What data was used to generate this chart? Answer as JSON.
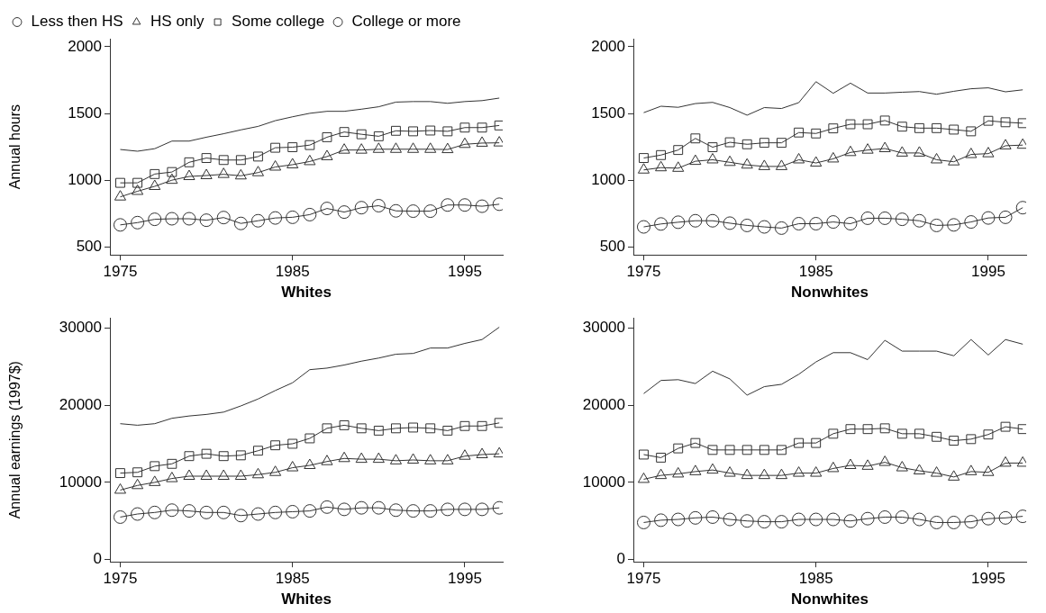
{
  "chart_data": [
    {
      "type": "line",
      "xlabel": "Whites",
      "ylabel": "Annual hours",
      "x": [
        1975,
        1976,
        1977,
        1978,
        1979,
        1980,
        1981,
        1982,
        1983,
        1984,
        1985,
        1986,
        1987,
        1988,
        1989,
        1990,
        1991,
        1992,
        1993,
        1994,
        1995,
        1996,
        1997
      ],
      "xlim": [
        1974.4,
        1997.2
      ],
      "xticks": [
        1975,
        1985,
        1995
      ],
      "ylim": [
        440,
        2060
      ],
      "yticks": [
        500,
        1000,
        1500,
        2000
      ],
      "grid": false,
      "legend": "top",
      "series": [
        {
          "name": "Less then HS",
          "color": "#333333",
          "marker": "circle",
          "values": [
            665,
            682,
            707,
            711,
            711,
            700,
            720,
            676,
            696,
            717,
            722,
            742,
            788,
            761,
            794,
            809,
            770,
            768,
            768,
            814,
            814,
            805,
            820
          ]
        },
        {
          "name": "HS only",
          "color": "#333333",
          "marker": "triangle",
          "values": [
            875,
            917,
            954,
            1000,
            1028,
            1035,
            1044,
            1033,
            1057,
            1099,
            1116,
            1140,
            1177,
            1226,
            1226,
            1232,
            1232,
            1232,
            1232,
            1230,
            1269,
            1278,
            1280
          ]
        },
        {
          "name": "Some college",
          "color": "#333333",
          "marker": "square",
          "values": [
            980,
            980,
            1046,
            1061,
            1134,
            1166,
            1151,
            1151,
            1177,
            1243,
            1247,
            1263,
            1322,
            1361,
            1344,
            1329,
            1370,
            1366,
            1372,
            1366,
            1394,
            1394,
            1410
          ]
        },
        {
          "name": "College or more",
          "color": "#333333",
          "marker": "none",
          "values": [
            1230,
            1217,
            1236,
            1293,
            1293,
            1322,
            1348,
            1377,
            1403,
            1446,
            1475,
            1501,
            1516,
            1516,
            1532,
            1550,
            1585,
            1589,
            1589,
            1576,
            1589,
            1596,
            1615
          ]
        }
      ]
    },
    {
      "type": "line",
      "xlabel": "Nonwhites",
      "x": [
        1975,
        1976,
        1977,
        1978,
        1979,
        1980,
        1981,
        1982,
        1983,
        1984,
        1985,
        1986,
        1987,
        1988,
        1989,
        1990,
        1991,
        1992,
        1993,
        1994,
        1995,
        1996,
        1997
      ],
      "xlim": [
        1974.4,
        1997.2
      ],
      "xticks": [
        1975,
        1985,
        1995
      ],
      "ylim": [
        440,
        2060
      ],
      "yticks": [
        500,
        1000,
        1500,
        2000
      ],
      "grid": false,
      "series": [
        {
          "color": "#333333",
          "marker": "circle",
          "values": [
            650,
            672,
            685,
            696,
            696,
            678,
            661,
            650,
            641,
            674,
            674,
            687,
            674,
            715,
            715,
            707,
            696,
            661,
            665,
            687,
            717,
            722,
            794
          ]
        },
        {
          "color": "#333333",
          "marker": "triangle",
          "values": [
            1077,
            1094,
            1090,
            1142,
            1153,
            1134,
            1114,
            1103,
            1103,
            1153,
            1129,
            1160,
            1208,
            1226,
            1237,
            1204,
            1204,
            1153,
            1138,
            1193,
            1199,
            1258,
            1263
          ]
        },
        {
          "color": "#333333",
          "marker": "square",
          "values": [
            1166,
            1188,
            1226,
            1313,
            1247,
            1284,
            1269,
            1280,
            1280,
            1357,
            1350,
            1388,
            1419,
            1419,
            1447,
            1401,
            1390,
            1390,
            1379,
            1366,
            1445,
            1434,
            1427
          ]
        },
        {
          "color": "#333333",
          "marker": "none",
          "values": [
            1506,
            1554,
            1546,
            1574,
            1583,
            1544,
            1487,
            1544,
            1537,
            1581,
            1738,
            1651,
            1727,
            1653,
            1653,
            1659,
            1664,
            1644,
            1666,
            1685,
            1692,
            1662,
            1677
          ]
        }
      ]
    },
    {
      "type": "line",
      "xlabel": "Whites",
      "ylabel": "Annual earnings (1997$)",
      "x": [
        1975,
        1976,
        1977,
        1978,
        1979,
        1980,
        1981,
        1982,
        1983,
        1984,
        1985,
        1986,
        1987,
        1988,
        1989,
        1990,
        1991,
        1992,
        1993,
        1994,
        1995,
        1996,
        1997
      ],
      "xlim": [
        1974.4,
        1997.2
      ],
      "xticks": [
        1975,
        1985,
        1995
      ],
      "ylim": [
        -300,
        31300
      ],
      "yticks": [
        0,
        10000,
        20000,
        30000
      ],
      "grid": false,
      "series": [
        {
          "color": "#333333",
          "marker": "circle",
          "values": [
            5500,
            5900,
            6100,
            6400,
            6300,
            6100,
            6100,
            5700,
            5900,
            6100,
            6200,
            6300,
            6800,
            6500,
            6700,
            6700,
            6400,
            6300,
            6300,
            6500,
            6500,
            6500,
            6700
          ]
        },
        {
          "color": "#333333",
          "marker": "triangle",
          "values": [
            9000,
            9600,
            10000,
            10500,
            10800,
            10800,
            10800,
            10800,
            11000,
            11300,
            11900,
            12200,
            12700,
            13100,
            13000,
            13000,
            12800,
            12900,
            12800,
            12800,
            13400,
            13600,
            13700
          ]
        },
        {
          "color": "#333333",
          "marker": "square",
          "values": [
            11200,
            11300,
            12100,
            12400,
            13400,
            13700,
            13400,
            13500,
            14100,
            14800,
            15000,
            15700,
            17000,
            17400,
            17000,
            16700,
            17000,
            17100,
            17000,
            16700,
            17300,
            17300,
            17700
          ]
        },
        {
          "color": "#333333",
          "marker": "none",
          "values": [
            17600,
            17400,
            17600,
            18300,
            18600,
            18800,
            19100,
            19900,
            20800,
            21900,
            22900,
            24600,
            24800,
            25200,
            25700,
            26100,
            26600,
            26700,
            27400,
            27400,
            28000,
            28500,
            30100
          ]
        }
      ]
    },
    {
      "type": "line",
      "xlabel": "Nonwhites",
      "x": [
        1975,
        1976,
        1977,
        1978,
        1979,
        1980,
        1981,
        1982,
        1983,
        1984,
        1985,
        1986,
        1987,
        1988,
        1989,
        1990,
        1991,
        1992,
        1993,
        1994,
        1995,
        1996,
        1997
      ],
      "xlim": [
        1974.4,
        1997.2
      ],
      "xticks": [
        1975,
        1985,
        1995
      ],
      "ylim": [
        -300,
        31300
      ],
      "yticks": [
        0,
        10000,
        20000,
        30000
      ],
      "grid": false,
      "series": [
        {
          "color": "#333333",
          "marker": "circle",
          "values": [
            4800,
            5100,
            5200,
            5400,
            5500,
            5200,
            5000,
            4900,
            4900,
            5200,
            5200,
            5200,
            5000,
            5300,
            5500,
            5500,
            5200,
            4800,
            4800,
            4900,
            5300,
            5400,
            5600
          ]
        },
        {
          "color": "#333333",
          "marker": "triangle",
          "values": [
            10400,
            10900,
            11100,
            11400,
            11600,
            11200,
            10900,
            10900,
            10900,
            11200,
            11200,
            11800,
            12200,
            12100,
            12600,
            11900,
            11500,
            11200,
            10700,
            11400,
            11300,
            12500,
            12500
          ]
        },
        {
          "color": "#333333",
          "marker": "square",
          "values": [
            13600,
            13200,
            14400,
            15100,
            14200,
            14200,
            14200,
            14200,
            14200,
            15100,
            15100,
            16300,
            16900,
            16900,
            17000,
            16300,
            16300,
            15900,
            15400,
            15600,
            16200,
            17200,
            16900
          ]
        },
        {
          "color": "#333333",
          "marker": "none",
          "values": [
            21500,
            23200,
            23300,
            22800,
            24400,
            23400,
            21300,
            22400,
            22700,
            24000,
            25600,
            26800,
            26800,
            25900,
            28400,
            27000,
            27000,
            27000,
            26400,
            28500,
            26500,
            28500,
            27900
          ]
        }
      ]
    }
  ]
}
